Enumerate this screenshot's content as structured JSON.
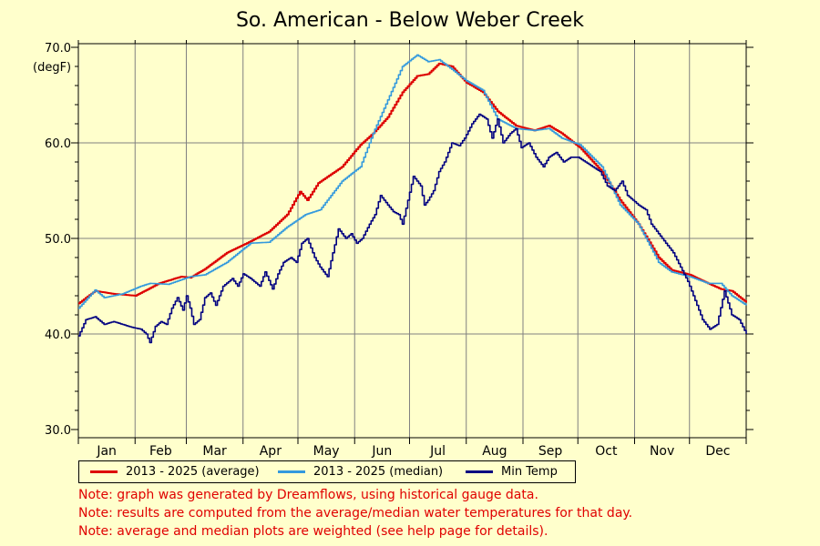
{
  "title": "So. American - Below Weber Creek",
  "notes": [
    "Note: graph was generated by Dreamflows, using historical gauge data.",
    "Note: results are computed from the average/median water temperatures for that day.",
    "Note: average and median plots are weighted (see help page for details)."
  ],
  "colors": {
    "average": "#dd0000",
    "median": "#3399dd",
    "min": "#000080",
    "unit_label": "#e00000",
    "note": "#e00000",
    "background": "#ffffcc",
    "grid": "#808080"
  },
  "chart_data": {
    "type": "line",
    "ylabel": "(degF)",
    "ylim": [
      30,
      70
    ],
    "yticks": [
      "30.0",
      "40.0",
      "50.0",
      "60.0",
      "70.0"
    ],
    "categories": [
      "Jan",
      "Feb",
      "Mar",
      "Apr",
      "May",
      "Jun",
      "Jul",
      "Aug",
      "Sep",
      "Oct",
      "Nov",
      "Dec"
    ],
    "x_unit": "day of year",
    "xlim": [
      1,
      366
    ],
    "grid": true,
    "legend_position": "bottom",
    "series": [
      {
        "name": "2013 - 2025 (average)",
        "color": "#dd0000",
        "points": [
          [
            1,
            43.2
          ],
          [
            10,
            44.5
          ],
          [
            20,
            44.2
          ],
          [
            32,
            44.0
          ],
          [
            45,
            45.3
          ],
          [
            57,
            46.0
          ],
          [
            62,
            45.9
          ],
          [
            70,
            46.8
          ],
          [
            82,
            48.5
          ],
          [
            95,
            49.7
          ],
          [
            105,
            50.7
          ],
          [
            115,
            52.5
          ],
          [
            122,
            54.9
          ],
          [
            126,
            54.0
          ],
          [
            132,
            55.8
          ],
          [
            145,
            57.5
          ],
          [
            155,
            59.8
          ],
          [
            162,
            61.0
          ],
          [
            170,
            62.7
          ],
          [
            178,
            65.3
          ],
          [
            186,
            67.0
          ],
          [
            192,
            67.2
          ],
          [
            198,
            68.3
          ],
          [
            205,
            68.0
          ],
          [
            213,
            66.3
          ],
          [
            222,
            65.3
          ],
          [
            230,
            63.3
          ],
          [
            240,
            61.8
          ],
          [
            250,
            61.3
          ],
          [
            258,
            61.8
          ],
          [
            265,
            61.0
          ],
          [
            275,
            59.5
          ],
          [
            287,
            57.0
          ],
          [
            297,
            54.0
          ],
          [
            307,
            51.5
          ],
          [
            318,
            48.0
          ],
          [
            325,
            46.7
          ],
          [
            335,
            46.2
          ],
          [
            345,
            45.3
          ],
          [
            352,
            44.7
          ],
          [
            358,
            44.5
          ],
          [
            366,
            43.3
          ]
        ]
      },
      {
        "name": "2013 - 2025 (median)",
        "color": "#3399dd",
        "points": [
          [
            1,
            42.7
          ],
          [
            10,
            44.6
          ],
          [
            15,
            43.8
          ],
          [
            25,
            44.2
          ],
          [
            35,
            45.0
          ],
          [
            40,
            45.3
          ],
          [
            50,
            45.2
          ],
          [
            62,
            46.0
          ],
          [
            70,
            46.2
          ],
          [
            82,
            47.5
          ],
          [
            95,
            49.5
          ],
          [
            105,
            49.6
          ],
          [
            115,
            51.2
          ],
          [
            125,
            52.5
          ],
          [
            133,
            53.0
          ],
          [
            145,
            56.0
          ],
          [
            155,
            57.5
          ],
          [
            162,
            61.0
          ],
          [
            170,
            64.5
          ],
          [
            178,
            68.0
          ],
          [
            186,
            69.2
          ],
          [
            192,
            68.5
          ],
          [
            198,
            68.7
          ],
          [
            205,
            67.7
          ],
          [
            213,
            66.5
          ],
          [
            222,
            65.5
          ],
          [
            230,
            62.5
          ],
          [
            240,
            61.5
          ],
          [
            250,
            61.3
          ],
          [
            258,
            61.5
          ],
          [
            265,
            60.5
          ],
          [
            275,
            59.8
          ],
          [
            287,
            57.5
          ],
          [
            297,
            53.5
          ],
          [
            307,
            51.5
          ],
          [
            318,
            47.5
          ],
          [
            325,
            46.5
          ],
          [
            335,
            46.0
          ],
          [
            345,
            45.3
          ],
          [
            352,
            45.3
          ],
          [
            358,
            44.0
          ],
          [
            366,
            43.0
          ]
        ]
      },
      {
        "name": "Min Temp",
        "color": "#000080",
        "points": [
          [
            1,
            39.8
          ],
          [
            5,
            41.5
          ],
          [
            10,
            41.8
          ],
          [
            15,
            41.0
          ],
          [
            20,
            41.3
          ],
          [
            25,
            41.0
          ],
          [
            30,
            40.7
          ],
          [
            35,
            40.5
          ],
          [
            38,
            40.0
          ],
          [
            40,
            39.1
          ],
          [
            43,
            40.8
          ],
          [
            46,
            41.3
          ],
          [
            49,
            41.0
          ],
          [
            52,
            42.7
          ],
          [
            55,
            43.8
          ],
          [
            58,
            42.5
          ],
          [
            60,
            44.0
          ],
          [
            62,
            42.7
          ],
          [
            64,
            41.0
          ],
          [
            67,
            41.5
          ],
          [
            70,
            43.8
          ],
          [
            73,
            44.3
          ],
          [
            76,
            43.0
          ],
          [
            80,
            45.0
          ],
          [
            85,
            45.8
          ],
          [
            88,
            45.0
          ],
          [
            91,
            46.3
          ],
          [
            95,
            45.8
          ],
          [
            100,
            45.0
          ],
          [
            103,
            46.5
          ],
          [
            107,
            44.7
          ],
          [
            110,
            46.3
          ],
          [
            113,
            47.5
          ],
          [
            117,
            48.0
          ],
          [
            120,
            47.5
          ],
          [
            123,
            49.5
          ],
          [
            126,
            50.0
          ],
          [
            130,
            48.0
          ],
          [
            133,
            47.0
          ],
          [
            137,
            46.0
          ],
          [
            140,
            48.5
          ],
          [
            143,
            51.0
          ],
          [
            147,
            50.0
          ],
          [
            150,
            50.5
          ],
          [
            153,
            49.5
          ],
          [
            156,
            50.0
          ],
          [
            160,
            51.5
          ],
          [
            163,
            52.5
          ],
          [
            166,
            54.5
          ],
          [
            170,
            53.5
          ],
          [
            173,
            52.8
          ],
          [
            176,
            52.5
          ],
          [
            178,
            51.5
          ],
          [
            181,
            54.0
          ],
          [
            184,
            56.5
          ],
          [
            188,
            55.5
          ],
          [
            190,
            53.5
          ],
          [
            192,
            54.0
          ],
          [
            195,
            55.0
          ],
          [
            198,
            57.0
          ],
          [
            201,
            58.0
          ],
          [
            205,
            60.0
          ],
          [
            209,
            59.7
          ],
          [
            212,
            60.5
          ],
          [
            216,
            62.0
          ],
          [
            220,
            63.0
          ],
          [
            224,
            62.5
          ],
          [
            227,
            60.5
          ],
          [
            230,
            62.5
          ],
          [
            233,
            60.0
          ],
          [
            237,
            61.0
          ],
          [
            240,
            61.5
          ],
          [
            243,
            59.5
          ],
          [
            247,
            60.0
          ],
          [
            251,
            58.5
          ],
          [
            255,
            57.5
          ],
          [
            258,
            58.5
          ],
          [
            262,
            59.0
          ],
          [
            266,
            58.0
          ],
          [
            270,
            58.5
          ],
          [
            274,
            58.5
          ],
          [
            278,
            58.0
          ],
          [
            282,
            57.5
          ],
          [
            286,
            57.0
          ],
          [
            290,
            55.5
          ],
          [
            294,
            55.0
          ],
          [
            298,
            56.0
          ],
          [
            301,
            54.5
          ],
          [
            304,
            54.0
          ],
          [
            307,
            53.5
          ],
          [
            311,
            53.0
          ],
          [
            314,
            51.5
          ],
          [
            318,
            50.5
          ],
          [
            322,
            49.5
          ],
          [
            326,
            48.5
          ],
          [
            330,
            47.0
          ],
          [
            334,
            45.5
          ],
          [
            338,
            43.5
          ],
          [
            342,
            41.5
          ],
          [
            346,
            40.5
          ],
          [
            350,
            41.0
          ],
          [
            354,
            44.5
          ],
          [
            358,
            42.0
          ],
          [
            362,
            41.5
          ],
          [
            366,
            40.0
          ]
        ]
      }
    ]
  }
}
